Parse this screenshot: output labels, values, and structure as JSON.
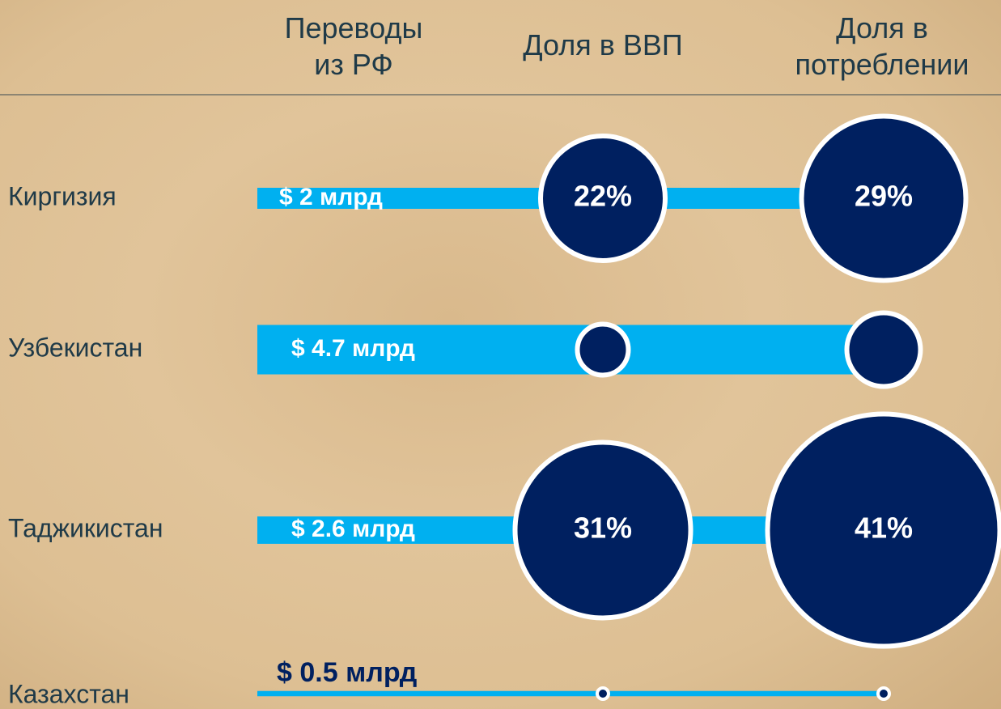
{
  "chart_data": {
    "type": "bubble-bar",
    "categories": [
      "Киргизия",
      "Узбекистан",
      "Таджикистан",
      "Казахстан"
    ],
    "series": [
      {
        "name": "Переводы из РФ",
        "color": "#00b0f0",
        "values": [
          2,
          4.7,
          2.6,
          0.5
        ],
        "value_labels": [
          "$ 2 млрд",
          "$ 4.7 млрд",
          "$ 2.6 млрд",
          "$ 0.5 млрд"
        ]
      },
      {
        "name": "Доля в ВВП",
        "color": "#002060",
        "values": [
          22,
          9,
          31,
          2
        ],
        "value_labels": [
          "22%",
          null,
          "31%",
          null
        ]
      },
      {
        "name": "Доля в потреблении",
        "color": "#002060",
        "values": [
          29,
          13,
          41,
          2
        ],
        "value_labels": [
          "29%",
          null,
          "41%",
          null
        ]
      }
    ]
  }
}
